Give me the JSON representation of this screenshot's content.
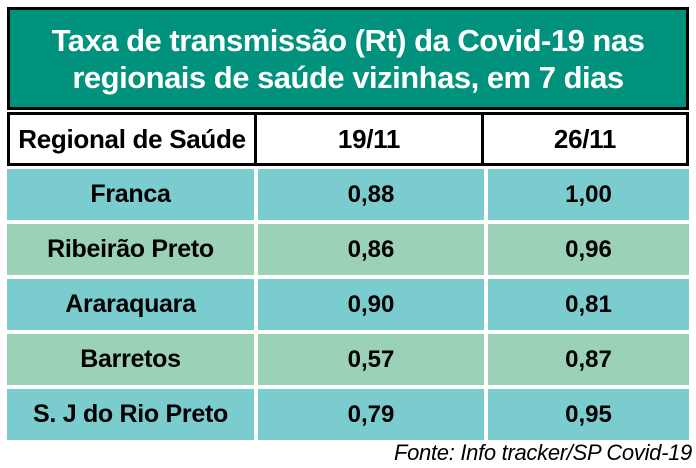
{
  "title": {
    "line1": "Taxa de transmissão (Rt) da Covid-19 nas",
    "line2": "regionais de saúde vizinhas, em 7 dias"
  },
  "table": {
    "columns": [
      "Regional de Saúde",
      "19/11",
      "26/11"
    ],
    "rows": [
      {
        "region": "Franca",
        "rt_19_11": "0,88",
        "rt_26_11": "1,00"
      },
      {
        "region": "Ribeirão Preto",
        "rt_19_11": "0,86",
        "rt_26_11": "0,96"
      },
      {
        "region": "Araraquara",
        "rt_19_11": "0,90",
        "rt_26_11": "0,81"
      },
      {
        "region": "Barretos",
        "rt_19_11": "0,57",
        "rt_26_11": "0,87"
      },
      {
        "region": "S. J do Rio Preto",
        "rt_19_11": "0,79",
        "rt_26_11": "0,95"
      }
    ]
  },
  "footer": {
    "source": "Fonte: Info tracker/SP Covid-19"
  },
  "colors": {
    "banner_bg": "#00927C",
    "banner_text": "#FFFFFF",
    "header_bg": "#FFFFFF",
    "row_teal": "#7BCCCE",
    "row_green": "#9BD1B6",
    "border": "#000000",
    "text": "#000000"
  },
  "chart_data": {
    "type": "table",
    "title": "Taxa de transmissão (Rt) da Covid-19 nas regionais de saúde vizinhas, em 7 dias",
    "columns": [
      "Regional de Saúde",
      "19/11",
      "26/11"
    ],
    "categories": [
      "Franca",
      "Ribeirão Preto",
      "Araraquara",
      "Barretos",
      "S. J do Rio Preto"
    ],
    "series": [
      {
        "name": "19/11",
        "values": [
          0.88,
          0.86,
          0.9,
          0.57,
          0.79
        ]
      },
      {
        "name": "26/11",
        "values": [
          1.0,
          0.96,
          0.81,
          0.87,
          0.95
        ]
      }
    ],
    "source": "Fonte: Info tracker/SP Covid-19"
  }
}
